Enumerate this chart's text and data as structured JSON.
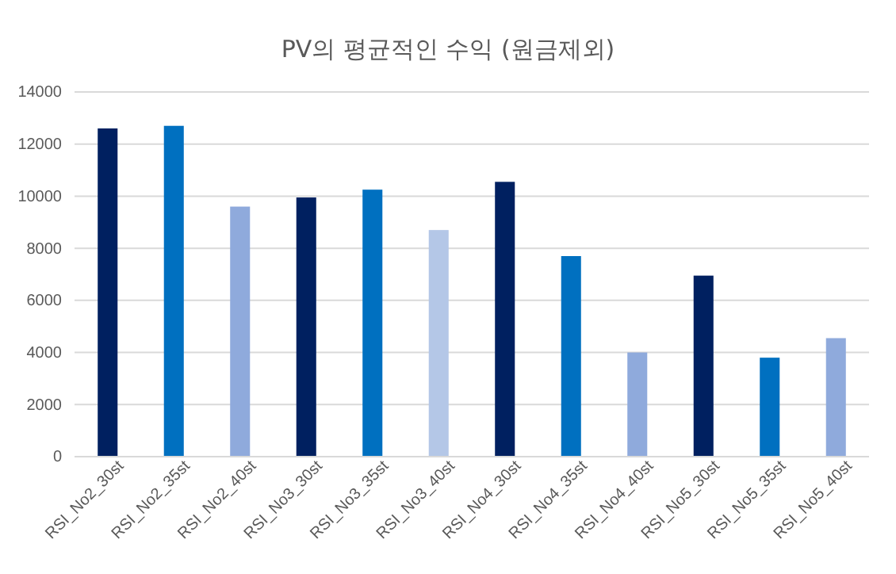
{
  "chart_data": {
    "type": "bar",
    "title": "PV의 평균적인 수익 (원금제외)",
    "categories": [
      "RSI_No2_30st",
      "RSI_No2_35st",
      "RSI_No2_40st",
      "RSI_No3_30st",
      "RSI_No3_35st",
      "RSI_No3_40st",
      "RSI_No4_30st",
      "RSI_No4_35st",
      "RSI_No4_40st",
      "RSI_No5_30st",
      "RSI_No5_35st",
      "RSI_No5_40st"
    ],
    "values": [
      12600,
      12700,
      9600,
      9950,
      10250,
      8700,
      10550,
      7700,
      4000,
      6950,
      3800,
      4550
    ],
    "colors": [
      "#002060",
      "#0070c0",
      "#8faadc",
      "#002060",
      "#0070c0",
      "#b4c7e7",
      "#002060",
      "#0070c0",
      "#8faadc",
      "#002060",
      "#0070c0",
      "#8faadc"
    ],
    "ylim": [
      0,
      14000
    ],
    "yticks": [
      0,
      2000,
      4000,
      6000,
      8000,
      10000,
      12000,
      14000
    ],
    "grid": "y"
  }
}
